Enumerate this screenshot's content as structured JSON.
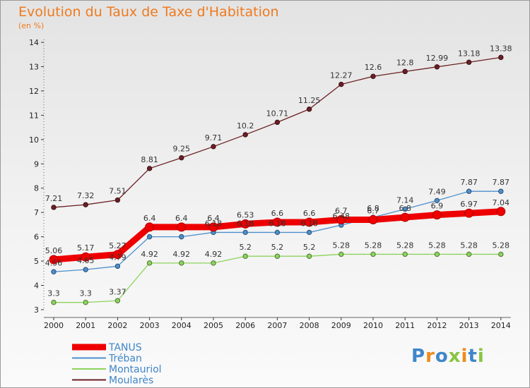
{
  "chart_data": {
    "type": "line",
    "title": "Evolution du Taux de Taxe d'Habitation",
    "subtitle": "(en %)",
    "xlabel": "",
    "ylabel": "",
    "x": [
      "2000",
      "2001",
      "2002",
      "2003",
      "2004",
      "2005",
      "2006",
      "2007",
      "2008",
      "2009",
      "2010",
      "2011",
      "2012",
      "2013",
      "2014"
    ],
    "ylim": [
      3,
      14
    ],
    "yticks": [
      3,
      4,
      5,
      6,
      7,
      8,
      9,
      10,
      11,
      12,
      13,
      14
    ],
    "grid": false,
    "legend_position": "bottom-left",
    "series": [
      {
        "name": "Moularès",
        "color": "#6b1f24",
        "values": [
          7.21,
          7.32,
          7.51,
          8.81,
          9.25,
          9.71,
          10.2,
          10.71,
          11.25,
          12.27,
          12.6,
          12.8,
          12.99,
          13.18,
          13.38
        ],
        "labels": [
          "7.21",
          "7.32",
          "7.51",
          "8.81",
          "9.25",
          "9.71",
          "10.2",
          "10.71",
          "11.25",
          "12.27",
          "12.6",
          "12.8",
          "12.99",
          "13.18",
          "13.38"
        ]
      },
      {
        "name": "Tréban",
        "color": "#4d8fcc",
        "values": [
          4.56,
          4.65,
          4.79,
          6.0,
          6.0,
          6.18,
          6.18,
          6.18,
          6.18,
          6.48,
          6.8,
          7.14,
          7.49,
          7.87,
          7.87
        ],
        "labels": [
          "4.56",
          "4.65",
          "4.79",
          "",
          "",
          "6.18",
          "6.18",
          "6.18",
          "6.18",
          "6.48",
          "6.8",
          "7.14",
          "7.49",
          "7.87",
          "7.87"
        ]
      },
      {
        "name": "Montauriol",
        "color": "#8dd45c",
        "values": [
          3.3,
          3.3,
          3.37,
          4.92,
          4.92,
          4.92,
          5.2,
          5.2,
          5.2,
          5.28,
          5.28,
          5.28,
          5.28,
          5.28,
          5.28
        ],
        "labels": [
          "3.3",
          "3.3",
          "3.37",
          "4.92",
          "4.92",
          "4.92",
          "5.2",
          "5.2",
          "5.2",
          "5.28",
          "5.28",
          "5.28",
          "5.28",
          "5.28",
          "5.28"
        ]
      },
      {
        "name": "TANUS",
        "color": "#ee0000",
        "values": [
          5.06,
          5.17,
          5.27,
          6.4,
          6.4,
          6.4,
          6.53,
          6.6,
          6.6,
          6.7,
          6.7,
          6.8,
          6.9,
          6.97,
          7.04
        ],
        "labels": [
          "5.06",
          "5.17",
          "5.27",
          "6.4",
          "6.4",
          "6.4",
          "6.53",
          "6.6",
          "6.6",
          "6.7",
          "6.7",
          "6.8",
          "6.9",
          "6.97",
          "7.04"
        ]
      }
    ],
    "legend": [
      "TANUS",
      "Tréban",
      "Montauriol",
      "Moularès"
    ]
  },
  "logo": {
    "text": "Proxiti"
  }
}
